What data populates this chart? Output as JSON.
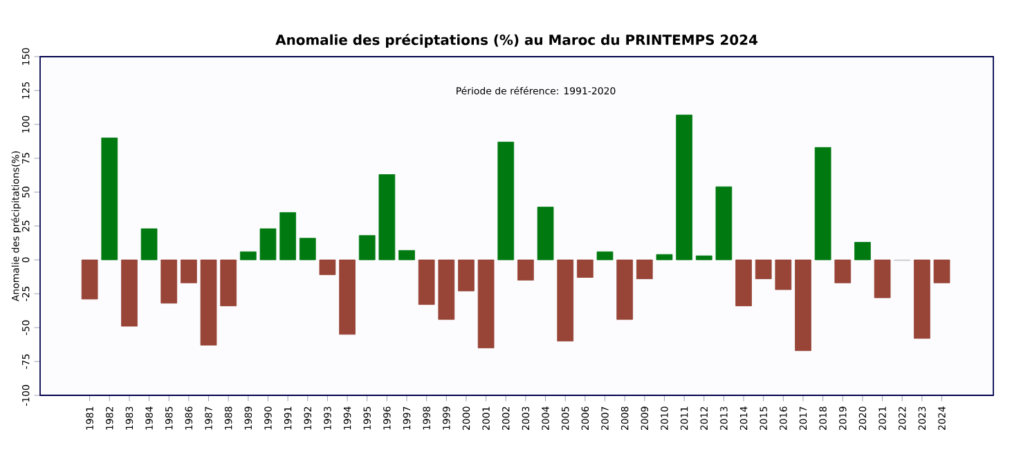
{
  "chart_data": {
    "type": "bar",
    "title": "Anomalie des préciptations (%) au Maroc du PRINTEMPS 2024",
    "ylabel": "Anomalie des précipitations(%)",
    "annotations": [
      "Période de référence: 1991-2020"
    ],
    "categories": [
      "1981",
      "1982",
      "1983",
      "1984",
      "1985",
      "1986",
      "1987",
      "1988",
      "1989",
      "1990",
      "1991",
      "1992",
      "1993",
      "1994",
      "1995",
      "1996",
      "1997",
      "1998",
      "1999",
      "2000",
      "2001",
      "2002",
      "2003",
      "2004",
      "2005",
      "2006",
      "2007",
      "2008",
      "2009",
      "2010",
      "2011",
      "2012",
      "2013",
      "2014",
      "2015",
      "2016",
      "2017",
      "2018",
      "2019",
      "2020",
      "2021",
      "2022",
      "2023",
      "2024"
    ],
    "values": [
      -29,
      90,
      -49,
      23,
      -32,
      -17,
      -63,
      -34,
      6,
      23,
      35,
      16,
      -11,
      -55,
      18,
      63,
      7,
      -33,
      -44,
      -23,
      -65,
      87,
      -15,
      39,
      -60,
      -13,
      6,
      -44,
      -14,
      4,
      107,
      3,
      54,
      -34,
      -14,
      -22,
      -67,
      83,
      -17,
      13,
      -28,
      -0.5,
      -58,
      -17
    ],
    "colors": [
      "#984436",
      "#007a10",
      "#984436",
      "#007a10",
      "#984436",
      "#984436",
      "#984436",
      "#984436",
      "#007a10",
      "#007a10",
      "#007a10",
      "#007a10",
      "#984436",
      "#984436",
      "#007a10",
      "#007a10",
      "#007a10",
      "#984436",
      "#984436",
      "#984436",
      "#984436",
      "#007a10",
      "#984436",
      "#007a10",
      "#984436",
      "#984436",
      "#007a10",
      "#984436",
      "#984436",
      "#007a10",
      "#007a10",
      "#007a10",
      "#007a10",
      "#984436",
      "#984436",
      "#984436",
      "#984436",
      "#007a10",
      "#984436",
      "#007a10",
      "#984436",
      "#c8c8c8",
      "#984436",
      "#984436"
    ],
    "ylim": [
      -100,
      150
    ],
    "yticks": [
      -100,
      -75,
      -50,
      -25,
      0,
      25,
      50,
      75,
      100,
      125,
      150
    ],
    "grid": false
  }
}
